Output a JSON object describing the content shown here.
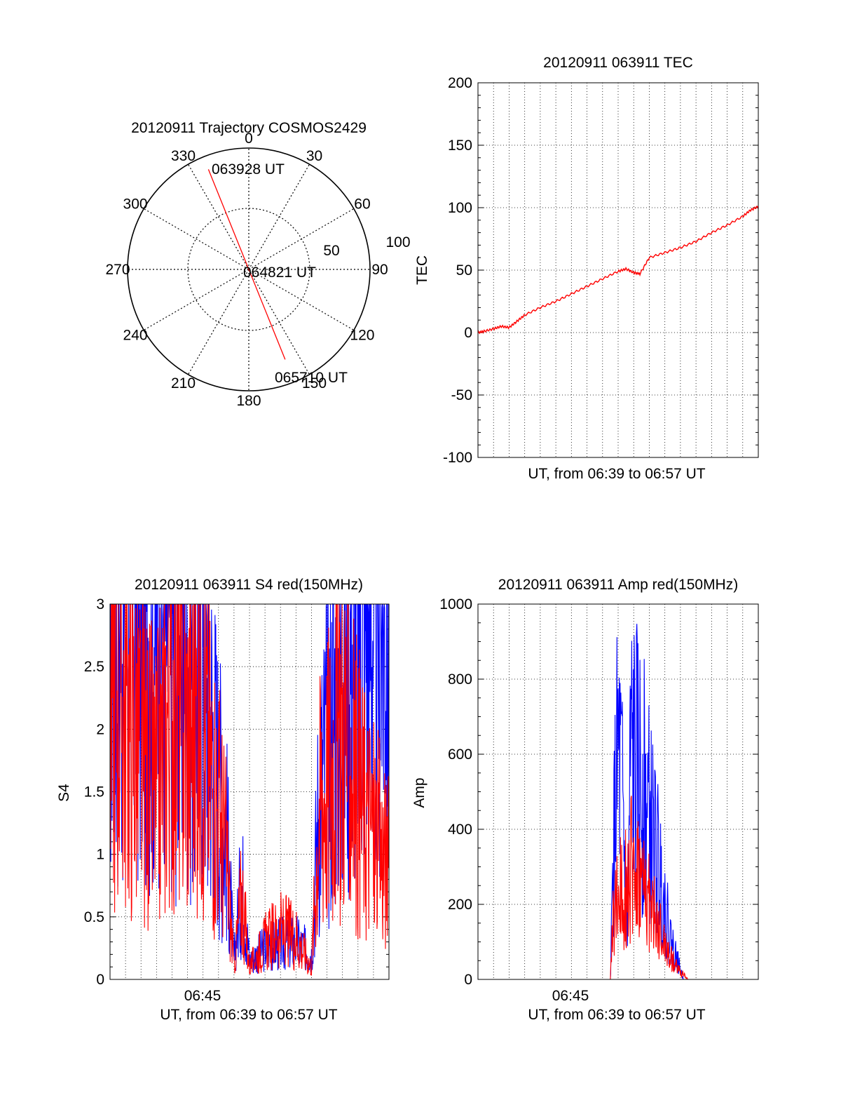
{
  "polar": {
    "title": "20120911 Trajectory COSMOS2429",
    "azimuth_labels": [
      "0",
      "30",
      "60",
      "90",
      "120",
      "150",
      "180",
      "210",
      "240",
      "270",
      "300",
      "330"
    ],
    "radius_labels": [
      "50",
      "100"
    ],
    "start_label": "063928 UT",
    "mid_label": "064821 UT",
    "end_label": "065710 UT",
    "line_color": "#ff0000",
    "chart_data": {
      "type": "scatter",
      "azimuth_deg": [
        338,
        158
      ],
      "elevation_deg": [
        10,
        18
      ],
      "times": [
        "063928 UT",
        "064821 UT",
        "065710 UT"
      ]
    }
  },
  "tec": {
    "title": "20120911 063911 TEC",
    "xlabel": "UT, from 06:39 to 06:57 UT",
    "ylabel": "TEC",
    "y_ticks": [
      "200",
      "150",
      "100",
      "50",
      "0",
      "-50",
      "-100"
    ],
    "line_color": "#ff0000",
    "chart_data": {
      "type": "line",
      "ylim": [
        -100,
        200
      ],
      "x_minutes": [
        0,
        0.4,
        1.0,
        1.5,
        2.0,
        2.5,
        3.0,
        4.0,
        5.0,
        6.0,
        7.0,
        8.0,
        9.0,
        9.5,
        10.0,
        10.4,
        11.0,
        12.0,
        13.0,
        14.0,
        15.0,
        16.0,
        17.0,
        17.5,
        18.0
      ],
      "values": [
        0,
        1,
        3,
        5,
        4,
        9,
        14,
        20,
        25,
        31,
        37,
        43,
        49,
        51,
        48,
        47,
        60,
        64,
        68,
        73,
        80,
        86,
        93,
        98,
        101
      ]
    }
  },
  "s4": {
    "title": "20120911 063911 S4 red(150MHz)",
    "xlabel": "UT, from 06:39 to 06:57 UT",
    "ylabel": "S4",
    "x_tick": "06:45",
    "y_ticks": [
      "3",
      "2.5",
      "2",
      "1.5",
      "1",
      "0.5",
      "0"
    ],
    "colors": {
      "red": "#ff0000",
      "blue": "#0000ff"
    },
    "chart_data": {
      "type": "line",
      "ylim": [
        0,
        3
      ],
      "series": [
        {
          "color": "blue",
          "x_minutes": [
            0,
            1,
            2,
            3,
            4,
            5,
            6,
            6.5,
            7,
            7.5,
            8,
            8.5,
            9,
            9.5,
            10,
            11,
            12,
            13,
            13.5,
            14,
            15,
            16,
            17,
            18
          ],
          "values": [
            3.0,
            3.0,
            3.0,
            3.0,
            2.9,
            2.8,
            2.5,
            2.1,
            1.6,
            1.2,
            0.15,
            0.8,
            0.15,
            0.2,
            0.25,
            0.28,
            0.3,
            0.2,
            1.5,
            1.8,
            2.6,
            3.0,
            3.0,
            3.0
          ]
        },
        {
          "color": "red",
          "x_minutes": [
            0,
            1,
            2,
            3,
            4,
            5,
            6,
            6.5,
            7,
            7.5,
            8,
            8.5,
            9,
            9.5,
            10,
            11,
            12,
            13,
            13.5,
            14,
            15,
            16,
            17,
            18
          ],
          "values": [
            2.6,
            2.2,
            1.8,
            1.5,
            2.4,
            2.0,
            2.2,
            1.7,
            1.4,
            1.0,
            0.1,
            0.7,
            0.1,
            0.2,
            0.3,
            0.4,
            0.35,
            0.1,
            1.4,
            1.6,
            2.1,
            1.5,
            1.2,
            0.9
          ]
        }
      ]
    }
  },
  "amp": {
    "title": "20120911 063911 Amp red(150MHz)",
    "xlabel": "UT, from 06:39 to 06:57 UT",
    "ylabel": "Amp",
    "x_tick": "06:45",
    "y_ticks": [
      "1000",
      "800",
      "600",
      "400",
      "200",
      "0"
    ],
    "colors": {
      "red": "#ff0000",
      "blue": "#0000ff"
    },
    "chart_data": {
      "type": "line",
      "ylim": [
        0,
        1000
      ],
      "series": [
        {
          "color": "blue",
          "x_minutes": [
            0,
            8.5,
            8.7,
            9.0,
            9.3,
            9.6,
            9.8,
            10.2,
            10.6,
            11.0,
            11.6,
            12.3,
            12.8,
            13.2,
            18
          ],
          "values": [
            0,
            0,
            350,
            600,
            450,
            120,
            600,
            560,
            520,
            430,
            300,
            120,
            50,
            0,
            0
          ]
        },
        {
          "color": "red",
          "x_minutes": [
            0,
            8.5,
            8.7,
            9.0,
            9.5,
            10.0,
            10.5,
            11.0,
            11.6,
            12.3,
            13.0,
            13.5,
            18
          ],
          "values": [
            0,
            0,
            180,
            210,
            260,
            300,
            250,
            200,
            130,
            60,
            20,
            0,
            0
          ]
        }
      ]
    }
  }
}
